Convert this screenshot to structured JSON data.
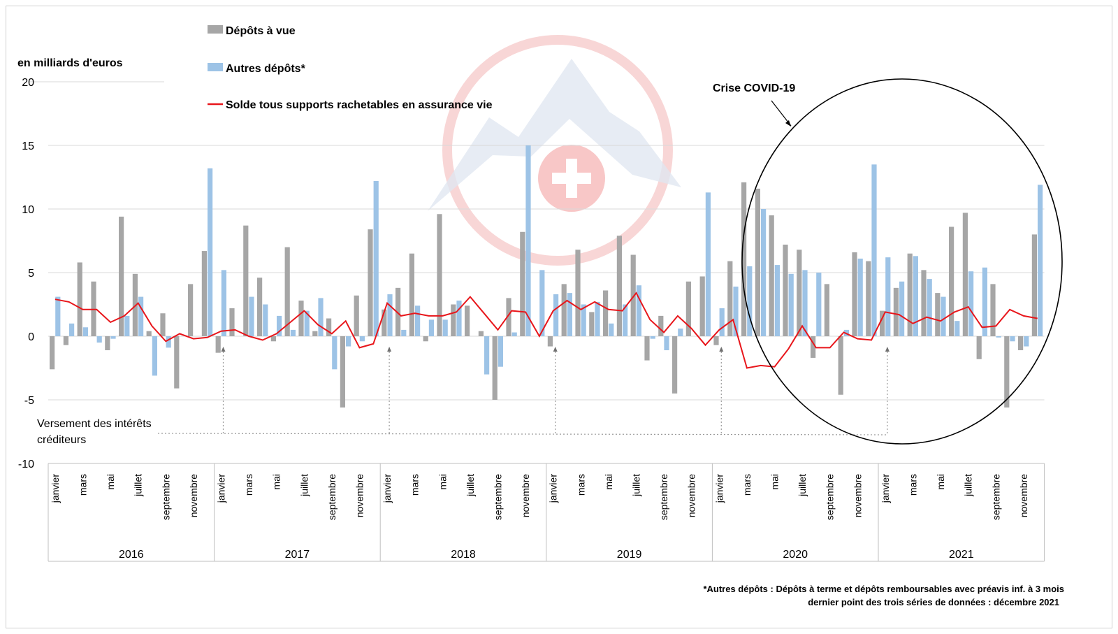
{
  "chart_data": {
    "type": "bar",
    "ylabel": "en milliards d'euros",
    "ylim": [
      -10,
      20
    ],
    "y_ticks": [
      20,
      15,
      10,
      5,
      0,
      -5,
      -10
    ],
    "month_tick_labels": [
      "janvier",
      "mars",
      "mai",
      "juillet",
      "septembre",
      "novembre"
    ],
    "years": [
      "2016",
      "2017",
      "2018",
      "2019",
      "2020",
      "2021"
    ],
    "legend": {
      "placement": "top-left",
      "items": [
        {
          "label": "Dépôts à vue",
          "color": "#a6a6a6"
        },
        {
          "label": "Autres dépôts*",
          "color": "#9dc3e6"
        },
        {
          "label": "Solde tous supports rachetables en assurance vie",
          "color": "#e8161b"
        }
      ]
    },
    "series": [
      {
        "name": "Dépôts à vue",
        "kind": "bar",
        "values": [
          -2.6,
          -0.7,
          5.8,
          4.3,
          -1.1,
          9.4,
          4.9,
          0.4,
          1.8,
          -4.1,
          4.1,
          6.7,
          -1.3,
          2.2,
          8.7,
          4.6,
          -0.4,
          7.0,
          2.8,
          0.4,
          1.4,
          -5.6,
          3.2,
          8.4,
          2.1,
          3.8,
          6.5,
          -0.4,
          9.6,
          2.5,
          2.4,
          0.4,
          -5.0,
          3.0,
          8.2,
          0.0,
          -0.8,
          4.1,
          6.8,
          1.9,
          3.6,
          7.9,
          6.4,
          -1.9,
          1.6,
          -4.5,
          4.3,
          4.7,
          -0.7,
          5.9,
          12.1,
          11.6,
          9.5,
          7.2,
          6.8,
          -1.7,
          4.1,
          -4.6,
          6.6,
          5.9,
          2.0,
          3.8,
          6.5,
          5.2,
          3.4,
          8.6,
          9.7,
          -1.8,
          4.1,
          -5.6,
          -1.1,
          8.0
        ]
      },
      {
        "name": "Autres dépôts*",
        "kind": "bar",
        "values": [
          3.1,
          1.0,
          0.7,
          -0.5,
          -0.2,
          1.6,
          3.1,
          -3.1,
          -0.9,
          0.0,
          0.0,
          13.2,
          5.2,
          0.0,
          3.1,
          2.5,
          1.6,
          0.5,
          2.0,
          3.0,
          -2.6,
          -0.8,
          -0.4,
          12.2,
          3.3,
          0.5,
          2.4,
          1.3,
          1.3,
          2.8,
          0.0,
          -3.0,
          -2.4,
          0.3,
          15.0,
          5.2,
          3.3,
          3.4,
          2.5,
          2.7,
          1.0,
          2.5,
          4.0,
          -0.2,
          -1.1,
          0.6,
          0.0,
          11.3,
          2.2,
          3.9,
          5.5,
          10.0,
          5.6,
          4.9,
          5.2,
          5.0,
          0.0,
          0.5,
          6.1,
          13.5,
          6.2,
          4.3,
          6.3,
          4.5,
          3.1,
          1.2,
          5.1,
          5.4,
          -0.1,
          -0.4,
          -0.8,
          11.9
        ]
      },
      {
        "name": "Solde tous supports rachetables en assurance vie",
        "kind": "line",
        "values": [
          2.9,
          2.7,
          2.1,
          2.1,
          1.1,
          1.6,
          2.6,
          0.8,
          -0.4,
          0.2,
          -0.2,
          -0.1,
          0.4,
          0.5,
          0.0,
          -0.3,
          0.2,
          1.1,
          2.0,
          0.9,
          0.2,
          1.2,
          -0.9,
          -0.6,
          2.6,
          1.6,
          1.8,
          1.6,
          1.6,
          1.9,
          3.1,
          1.8,
          0.5,
          2.0,
          1.9,
          0.0,
          2.0,
          2.8,
          2.1,
          2.7,
          2.1,
          2.0,
          3.4,
          1.3,
          0.3,
          1.6,
          0.6,
          -0.7,
          0.5,
          1.3,
          -2.5,
          -2.3,
          -2.4,
          -1.0,
          0.8,
          -0.9,
          -0.9,
          0.3,
          -0.2,
          -0.3,
          1.9,
          1.7,
          1.0,
          1.5,
          1.2,
          1.9,
          2.3,
          0.7,
          0.8,
          2.1,
          1.6,
          1.4
        ]
      }
    ],
    "annotations": {
      "interest_note_line1": "Versement des intérêts",
      "interest_note_line2": "créditeurs",
      "interest_months": [
        0,
        12,
        24,
        36,
        48,
        60
      ],
      "covid_label": "Crise COVID-19"
    },
    "footnotes": {
      "line1": "*Autres dépôts : Dépôts à terme et dépôts remboursables avec préavis inf. à 3 mois",
      "line2": "dernier point des trois séries de données : décembre 2021"
    }
  }
}
